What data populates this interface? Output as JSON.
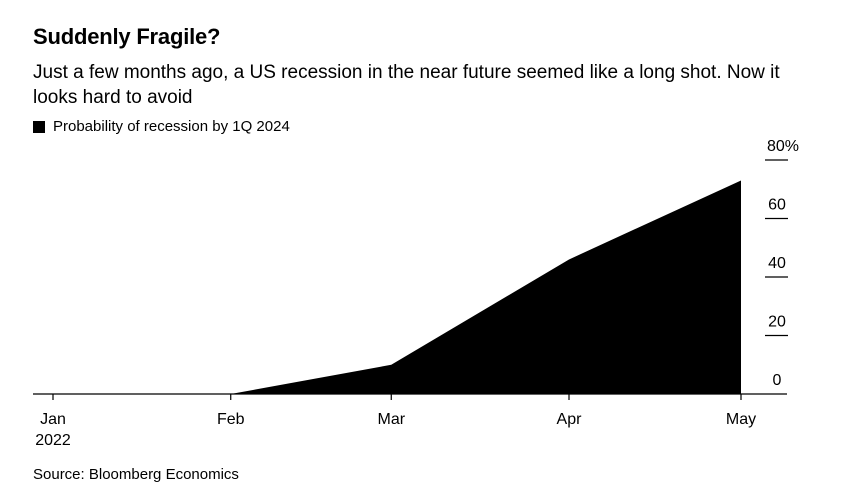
{
  "header": {
    "title": "Suddenly Fragile?",
    "subtitle": "Just a few months ago, a US recession in the near future seemed like a long shot. Now it looks hard to avoid"
  },
  "legend": {
    "label": "Probability of recession by 1Q 2024",
    "color": "#000000"
  },
  "footer": {
    "source": "Source: Bloomberg Economics"
  },
  "chart_data": {
    "type": "area",
    "series": [
      {
        "name": "Probability of recession by 1Q 2024",
        "color": "#000000",
        "points": [
          {
            "x": "2022-01-01",
            "y": 0
          },
          {
            "x": "2022-02-01",
            "y": 0
          },
          {
            "x": "2022-03-01",
            "y": 10
          },
          {
            "x": "2022-04-01",
            "y": 46
          },
          {
            "x": "2022-05-01",
            "y": 73
          }
        ]
      }
    ],
    "x_ticks": [
      {
        "x": "2022-01-01",
        "label": "Jan",
        "sublabel": "2022"
      },
      {
        "x": "2022-02-01",
        "label": "Feb"
      },
      {
        "x": "2022-03-01",
        "label": "Mar"
      },
      {
        "x": "2022-04-01",
        "label": "Apr"
      },
      {
        "x": "2022-05-01",
        "label": "May"
      }
    ],
    "y_ticks": [
      {
        "value": 0,
        "label": "0"
      },
      {
        "value": 20,
        "label": "20"
      },
      {
        "value": 40,
        "label": "40"
      },
      {
        "value": 60,
        "label": "60"
      },
      {
        "value": 80,
        "label": "80%"
      }
    ],
    "ylim": [
      0,
      80
    ],
    "y_axis_side": "right",
    "grid": false
  }
}
